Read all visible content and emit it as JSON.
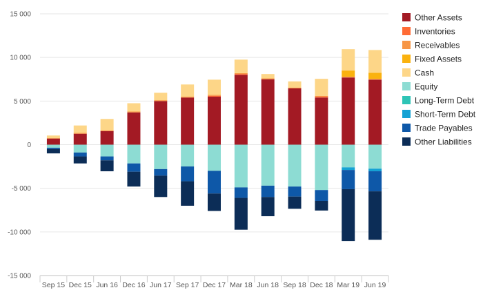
{
  "chart_data": {
    "type": "bar",
    "stacked": true,
    "categories": [
      "Sep 15",
      "Dec 15",
      "Jun 16",
      "Dec 16",
      "Jun 17",
      "Sep 17",
      "Dec 17",
      "Mar 18",
      "Jun 18",
      "Sep 18",
      "Dec 18",
      "Mar 19",
      "Jun 19"
    ],
    "ylim": [
      -15000,
      15000
    ],
    "yticks": [
      15000,
      10000,
      5000,
      0,
      -5000,
      -10000,
      -15000
    ],
    "ytick_labels": [
      "15 000",
      "10 000",
      "5 000",
      "0",
      "-5 000",
      "-10 000",
      "-15 000"
    ],
    "grid": true,
    "legend_position": "right",
    "series": [
      {
        "name": "Other Assets",
        "color": "#a31a24",
        "values": [
          700,
          1250,
          1550,
          3700,
          5000,
          5400,
          5500,
          8000,
          7500,
          6450,
          5400,
          7700,
          7450
        ]
      },
      {
        "name": "Inventories",
        "color": "#ff6b35",
        "values": [
          0,
          0,
          0,
          0,
          0,
          0,
          100,
          100,
          0,
          0,
          100,
          0,
          0
        ]
      },
      {
        "name": "Receivables",
        "color": "#f79646",
        "values": [
          50,
          100,
          100,
          100,
          100,
          100,
          100,
          100,
          100,
          100,
          100,
          100,
          100
        ]
      },
      {
        "name": "Fixed Assets",
        "color": "#fab20f",
        "values": [
          0,
          0,
          0,
          0,
          0,
          0,
          0,
          0,
          0,
          0,
          0,
          700,
          700
        ]
      },
      {
        "name": "Cash",
        "color": "#fdd688",
        "values": [
          300,
          850,
          1300,
          950,
          850,
          1400,
          1750,
          1550,
          500,
          700,
          1950,
          2450,
          2600
        ]
      },
      {
        "name": "Equity",
        "color": "#8ddcd3",
        "values": [
          -350,
          -900,
          -1350,
          -2150,
          -2800,
          -2500,
          -3000,
          -4900,
          -4700,
          -4800,
          -5200,
          -2600,
          -2750
        ]
      },
      {
        "name": "Long-Term Debt",
        "color": "#2ec4b6",
        "values": [
          0,
          0,
          0,
          0,
          0,
          0,
          0,
          0,
          0,
          0,
          0,
          0,
          0
        ]
      },
      {
        "name": "Short-Term Debt",
        "color": "#15a2d4",
        "values": [
          0,
          0,
          0,
          0,
          0,
          0,
          0,
          0,
          0,
          0,
          0,
          -300,
          -300
        ]
      },
      {
        "name": "Trade Payables",
        "color": "#0e58a8",
        "values": [
          -150,
          -450,
          -450,
          -950,
          -750,
          -1700,
          -2600,
          -1200,
          -1300,
          -1150,
          -1250,
          -2200,
          -2300
        ]
      },
      {
        "name": "Other Liabilities",
        "color": "#0c2d57",
        "values": [
          -500,
          -800,
          -1250,
          -1700,
          -2450,
          -2800,
          -2000,
          -3650,
          -2200,
          -1400,
          -1100,
          -5950,
          -5550
        ]
      }
    ]
  }
}
